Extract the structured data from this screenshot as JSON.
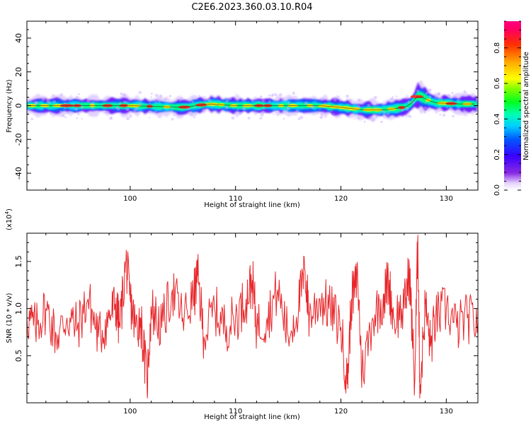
{
  "chart_data": [
    {
      "type": "heatmap",
      "title": "C2E6.2023.360.03.10.R04",
      "xlabel": "Height of straight line (km)",
      "ylabel": "Frequency (Hz)",
      "xlim": [
        90.2,
        133
      ],
      "ylim": [
        -50,
        50
      ],
      "xticks": [
        100,
        110,
        120,
        130
      ],
      "yticks": [
        -40,
        -20,
        0,
        20,
        40
      ],
      "colorbar": {
        "label": "Normalized spectral amplitude",
        "range": [
          0,
          0.95
        ],
        "ticks": [
          0.0,
          0.2,
          0.4,
          0.6,
          0.8
        ],
        "colormap": "rainbow (purple to red)"
      },
      "ridge": {
        "description": "dominant frequency ridge vs height",
        "x": [
          90.2,
          95,
          100,
          105,
          107.5,
          110,
          115,
          118,
          120,
          122,
          124,
          125.5,
          126.5,
          127.3,
          128,
          129,
          130,
          131,
          133
        ],
        "y": [
          0,
          0,
          0,
          -1,
          1,
          0,
          0,
          0,
          -1,
          -2.5,
          -2.5,
          -1.5,
          0,
          6,
          4,
          1.5,
          1.5,
          1,
          1
        ]
      }
    },
    {
      "type": "line",
      "xlabel": "Height of straight line (km)",
      "ylabel": "SNR (10 * v/v)",
      "y_multiplier": "(x10^4)",
      "xlim": [
        90.2,
        133
      ],
      "ylim": [
        0,
        1.8
      ],
      "xticks": [
        100,
        110,
        120,
        130
      ],
      "yticks": [
        0.5,
        1.0,
        1.5
      ],
      "series": [
        {
          "color": "#e8262a",
          "x": [
            90.2,
            91,
            92,
            93,
            94,
            95,
            96,
            97,
            98,
            98.6,
            99,
            99.6,
            100,
            100.5,
            101,
            101.6,
            102,
            103,
            104,
            105,
            106,
            106.4,
            107,
            108,
            109,
            110,
            111,
            111.6,
            112,
            113,
            114,
            115,
            116,
            116.6,
            117,
            118,
            119,
            120,
            120.6,
            121,
            121.6,
            122,
            123,
            124,
            124.5,
            125,
            126,
            126.5,
            127,
            127.3,
            127.5,
            128,
            128.5,
            129,
            130,
            131,
            132,
            133
          ],
          "y": [
            0.9,
            0.8,
            1.0,
            0.7,
            0.9,
            0.8,
            1.1,
            0.7,
            0.9,
            1.05,
            0.8,
            1.5,
            1.1,
            0.8,
            0.9,
            0.2,
            1.0,
            0.8,
            1.2,
            0.9,
            1.1,
            1.35,
            0.7,
            1.0,
            0.8,
            0.9,
            1.1,
            1.3,
            0.8,
            0.9,
            1.2,
            0.7,
            1.05,
            1.4,
            0.9,
            1.1,
            1.0,
            0.8,
            0.2,
            1.1,
            1.3,
            0.3,
            0.9,
            1.1,
            1.3,
            0.9,
            1.0,
            1.4,
            0.2,
            1.78,
            0.1,
            1.05,
            0.6,
            0.9,
            1.0,
            0.8,
            0.9,
            0.85
          ]
        }
      ]
    }
  ]
}
